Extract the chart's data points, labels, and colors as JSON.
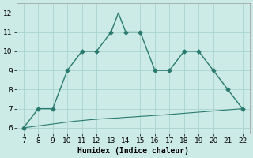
{
  "curve1_x": [
    7,
    8,
    9,
    10,
    11,
    12,
    13,
    13.5,
    14,
    15,
    16,
    17,
    18,
    19,
    20,
    21,
    22
  ],
  "curve1_y": [
    6,
    7,
    7,
    9,
    10,
    10,
    11,
    12,
    11,
    11,
    9,
    9,
    10,
    10,
    9,
    8,
    7
  ],
  "curve1_markers_x": [
    7,
    8,
    9,
    10,
    11,
    12,
    13,
    14,
    15,
    16,
    17,
    18,
    19,
    20,
    21,
    22
  ],
  "curve1_markers_y": [
    6,
    7,
    7,
    9,
    10,
    10,
    11,
    11,
    11,
    9,
    9,
    10,
    10,
    9,
    8,
    7
  ],
  "curve2_x": [
    7,
    7.5,
    8,
    8.5,
    9,
    9.5,
    10,
    10.5,
    11,
    11.5,
    12,
    12.5,
    13,
    13.5,
    14,
    14.5,
    15,
    15.5,
    16,
    16.5,
    17,
    17.5,
    18,
    18.5,
    19,
    19.5,
    20,
    20.5,
    21,
    21.5,
    22
  ],
  "curve2_y": [
    6.0,
    6.05,
    6.1,
    6.15,
    6.2,
    6.25,
    6.3,
    6.35,
    6.38,
    6.42,
    6.45,
    6.48,
    6.5,
    6.52,
    6.55,
    6.57,
    6.6,
    6.62,
    6.65,
    6.67,
    6.7,
    6.73,
    6.76,
    6.79,
    6.82,
    6.85,
    6.88,
    6.91,
    6.94,
    6.97,
    7.0
  ],
  "line_color": "#2a7b6f",
  "bg_color": "#cceae6",
  "grid_color": "#aad4ce",
  "xlabel": "Humidex (Indice chaleur)",
  "xlim": [
    6.5,
    22.5
  ],
  "ylim": [
    5.7,
    12.5
  ],
  "xticks": [
    7,
    8,
    9,
    10,
    11,
    12,
    13,
    14,
    15,
    16,
    17,
    18,
    19,
    20,
    21,
    22
  ],
  "yticks": [
    6,
    7,
    8,
    9,
    10,
    11,
    12
  ],
  "marker": "D",
  "marker_size": 2.5,
  "linewidth": 1.0,
  "xlabel_fontsize": 7,
  "tick_fontsize": 6.5
}
